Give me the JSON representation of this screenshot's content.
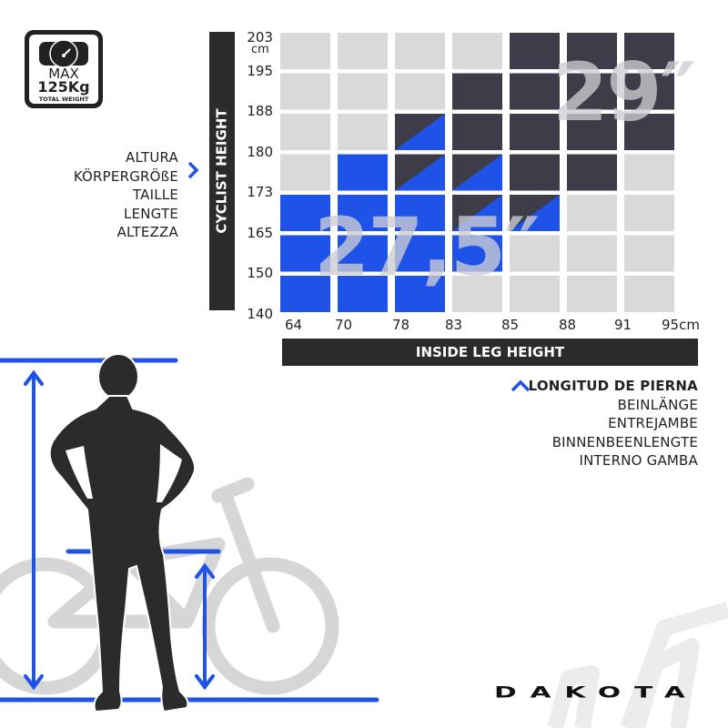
{
  "badge": {
    "line1": "MAX",
    "line2": "125Kg",
    "line3": "TOTAL WEIGHT",
    "icon": "speedometer-icon"
  },
  "height_labels": [
    "ALTURA",
    "KÖRPERGRÖßE",
    "TAILLE",
    "LENGTE",
    "ALTEZZA"
  ],
  "leg_labels": [
    "LONGITUD DE PIERNA",
    "BEINLÄNGE",
    "ENTREJAMBE",
    "BINNENBEENLENGTE",
    "INTERNO GAMBA"
  ],
  "brand": "DAKOTA",
  "colors": {
    "blue": "#1f52e6",
    "dark": "#3e3c48",
    "light": "#d9d9d9",
    "bar": "#2b2b2b",
    "bike": "#d6d6d6"
  },
  "chart_data": {
    "type": "heatmap",
    "ylabel": "CYCLIST HEIGHT",
    "xlabel": "INSIDE LEG HEIGHT",
    "y_ticks": [
      "203",
      "195",
      "188",
      "180",
      "173",
      "165",
      "150",
      "140"
    ],
    "y_unit": "cm",
    "x_ticks": [
      "64",
      "70",
      "78",
      "83",
      "85",
      "88",
      "91",
      "95cm"
    ],
    "annotations": [
      "29″",
      "27,5″"
    ],
    "legend": {
      "27.5": "blue",
      "29": "dark",
      "both": "split dark/blue",
      "none": "light"
    },
    "cells": [
      [
        "none",
        "none",
        "none",
        "none",
        "29",
        "29",
        "29"
      ],
      [
        "none",
        "none",
        "none",
        "29",
        "29",
        "29",
        "29"
      ],
      [
        "none",
        "none",
        "both",
        "29",
        "29",
        "29",
        "29"
      ],
      [
        "none",
        "27.5",
        "both",
        "both",
        "29",
        "29",
        "none"
      ],
      [
        "27.5",
        "27.5",
        "27.5",
        "both",
        "both",
        "none",
        "none"
      ],
      [
        "27.5",
        "27.5",
        "27.5",
        "27.5",
        "none",
        "none",
        "none"
      ],
      [
        "27.5",
        "27.5",
        "27.5",
        "none",
        "none",
        "none",
        "none"
      ]
    ]
  }
}
